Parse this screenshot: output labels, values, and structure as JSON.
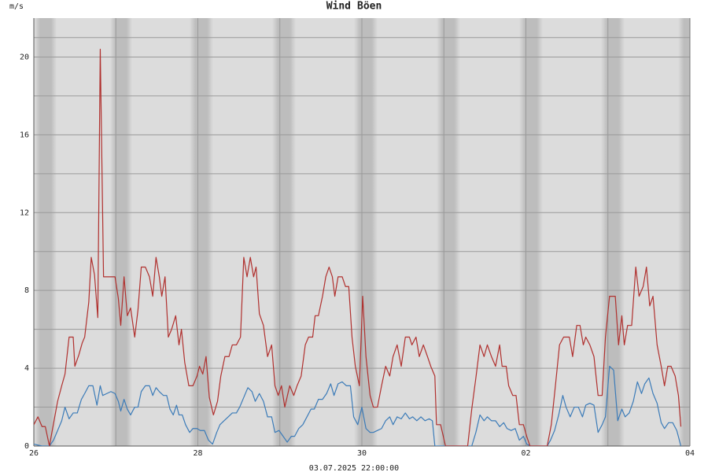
{
  "chart_data": {
    "type": "line",
    "y_label": "m/s",
    "footer": "03.07.2025 22:00:00",
    "xlim": [
      0,
      8
    ],
    "xticks": [
      {
        "value": 0,
        "label": "26"
      },
      {
        "value": 2,
        "label": "28"
      },
      {
        "value": 4,
        "label": "30"
      },
      {
        "value": 6,
        "label": "02"
      },
      {
        "value": 8,
        "label": "04"
      }
    ],
    "ylim": [
      0,
      22
    ],
    "yticks": [
      0,
      4,
      8,
      12,
      16,
      20
    ],
    "grid": true,
    "series": [
      {
        "name": "Wind",
        "color": "#3b7bb8",
        "x": [
          0,
          0.1,
          0.19,
          0.24,
          0.29,
          0.34,
          0.38,
          0.43,
          0.48,
          0.53,
          0.58,
          0.62,
          0.67,
          0.72,
          0.77,
          0.81,
          0.84,
          0.89,
          0.94,
          0.99,
          1.03,
          1.06,
          1.1,
          1.14,
          1.18,
          1.23,
          1.27,
          1.31,
          1.36,
          1.41,
          1.45,
          1.49,
          1.53,
          1.58,
          1.62,
          1.66,
          1.7,
          1.74,
          1.77,
          1.81,
          1.85,
          1.9,
          1.94,
          1.99,
          2.03,
          2.08,
          2.13,
          2.18,
          2.23,
          2.27,
          2.32,
          2.37,
          2.42,
          2.47,
          2.51,
          2.56,
          2.61,
          2.66,
          2.7,
          2.75,
          2.8,
          2.85,
          2.9,
          2.94,
          2.99,
          3.04,
          3.09,
          3.14,
          3.18,
          3.23,
          3.28,
          3.33,
          3.38,
          3.42,
          3.47,
          3.52,
          3.57,
          3.62,
          3.66,
          3.71,
          3.76,
          3.81,
          3.86,
          3.9,
          3.95,
          4.0,
          4.05,
          4.1,
          4.14,
          4.19,
          4.24,
          4.29,
          4.34,
          4.38,
          4.43,
          4.48,
          4.53,
          4.58,
          4.62,
          4.67,
          4.72,
          4.77,
          4.82,
          4.86,
          4.89,
          5.34,
          5.39,
          5.44,
          5.49,
          5.53,
          5.58,
          5.63,
          5.68,
          5.73,
          5.77,
          5.82,
          5.87,
          5.92,
          5.97,
          6.01,
          6.06,
          6.26,
          6.3,
          6.35,
          6.4,
          6.45,
          6.49,
          6.54,
          6.59,
          6.64,
          6.69,
          6.73,
          6.78,
          6.83,
          6.88,
          6.93,
          6.97,
          7.02,
          7.07,
          7.12,
          7.17,
          7.21,
          7.26,
          7.31,
          7.36,
          7.41,
          7.45,
          7.5,
          7.55,
          7.6,
          7.65,
          7.69,
          7.74,
          7.79,
          7.84,
          7.89
        ],
        "values": [
          0.1,
          0,
          0,
          0.3,
          0.8,
          1.3,
          2.0,
          1.4,
          1.7,
          1.7,
          2.4,
          2.7,
          3.1,
          3.1,
          2.1,
          3.1,
          2.6,
          2.7,
          2.8,
          2.7,
          2.3,
          1.8,
          2.4,
          1.9,
          1.6,
          2.0,
          2.0,
          2.8,
          3.1,
          3.1,
          2.6,
          3.0,
          2.8,
          2.6,
          2.6,
          1.9,
          1.6,
          2.1,
          1.6,
          1.6,
          1.1,
          0.7,
          0.9,
          0.9,
          0.8,
          0.8,
          0.3,
          0.1,
          0.7,
          1.1,
          1.3,
          1.5,
          1.7,
          1.7,
          2.0,
          2.5,
          3.0,
          2.8,
          2.3,
          2.7,
          2.3,
          1.5,
          1.5,
          0.7,
          0.8,
          0.5,
          0.2,
          0.5,
          0.5,
          0.9,
          1.1,
          1.5,
          1.9,
          1.9,
          2.4,
          2.4,
          2.7,
          3.2,
          2.6,
          3.2,
          3.3,
          3.1,
          3.1,
          1.5,
          1.1,
          2.0,
          0.9,
          0.7,
          0.7,
          0.8,
          0.9,
          1.3,
          1.5,
          1.1,
          1.5,
          1.4,
          1.7,
          1.4,
          1.5,
          1.3,
          1.5,
          1.3,
          1.4,
          1.3,
          0,
          0,
          0.7,
          1.6,
          1.3,
          1.5,
          1.3,
          1.3,
          1.0,
          1.2,
          0.9,
          0.8,
          0.9,
          0.3,
          0.5,
          0.1,
          0,
          0,
          0.3,
          0.8,
          1.6,
          2.6,
          2.0,
          1.5,
          2.0,
          2.0,
          1.5,
          2.1,
          2.2,
          2.1,
          0.7,
          1.1,
          1.5,
          4.1,
          3.9,
          1.3,
          1.9,
          1.5,
          1.7,
          2.3,
          3.3,
          2.7,
          3.2,
          3.5,
          2.7,
          2.2,
          1.2,
          0.9,
          1.2,
          1.2,
          0.8,
          0
        ]
      },
      {
        "name": "Böen",
        "color": "#b0302e",
        "x": [
          0,
          0.05,
          0.1,
          0.14,
          0.19,
          0.29,
          0.34,
          0.38,
          0.43,
          0.48,
          0.5,
          0.55,
          0.59,
          0.62,
          0.67,
          0.7,
          0.74,
          0.78,
          0.81,
          0.85,
          0.93,
          0.99,
          1.03,
          1.06,
          1.1,
          1.14,
          1.18,
          1.23,
          1.27,
          1.31,
          1.36,
          1.41,
          1.45,
          1.49,
          1.53,
          1.56,
          1.6,
          1.64,
          1.68,
          1.73,
          1.77,
          1.8,
          1.84,
          1.89,
          1.94,
          1.99,
          2.02,
          2.06,
          2.1,
          2.14,
          2.19,
          2.24,
          2.28,
          2.33,
          2.38,
          2.42,
          2.47,
          2.52,
          2.56,
          2.6,
          2.64,
          2.68,
          2.71,
          2.75,
          2.8,
          2.85,
          2.9,
          2.94,
          2.98,
          3.02,
          3.06,
          3.12,
          3.17,
          3.21,
          3.26,
          3.31,
          3.35,
          3.4,
          3.43,
          3.47,
          3.52,
          3.56,
          3.6,
          3.64,
          3.67,
          3.71,
          3.76,
          3.8,
          3.84,
          3.88,
          3.92,
          3.97,
          4.01,
          4.05,
          4.1,
          4.14,
          4.19,
          4.24,
          4.29,
          4.34,
          4.38,
          4.43,
          4.48,
          4.53,
          4.58,
          4.61,
          4.66,
          4.7,
          4.75,
          4.8,
          4.84,
          4.89,
          4.91,
          4.96,
          5.02,
          5.29,
          5.34,
          5.39,
          5.44,
          5.49,
          5.53,
          5.58,
          5.63,
          5.68,
          5.71,
          5.76,
          5.79,
          5.84,
          5.88,
          5.92,
          5.97,
          6.01,
          6.05,
          6.26,
          6.31,
          6.36,
          6.41,
          6.46,
          6.5,
          6.53,
          6.57,
          6.62,
          6.66,
          6.7,
          6.73,
          6.78,
          6.83,
          6.88,
          6.93,
          6.97,
          7.02,
          7.09,
          7.13,
          7.17,
          7.2,
          7.24,
          7.29,
          7.34,
          7.38,
          7.43,
          7.47,
          7.51,
          7.55,
          7.6,
          7.65,
          7.69,
          7.73,
          7.77,
          7.82,
          7.86,
          7.89
        ],
        "values": [
          1.1,
          1.5,
          1.0,
          1.0,
          0,
          2.3,
          3.1,
          3.7,
          5.6,
          5.6,
          4.1,
          4.7,
          5.3,
          5.6,
          7.4,
          9.7,
          8.8,
          6.6,
          20.4,
          8.7,
          8.7,
          8.7,
          7.6,
          6.2,
          8.7,
          6.7,
          7.1,
          5.6,
          7.0,
          9.2,
          9.2,
          8.7,
          7.7,
          9.7,
          8.7,
          7.7,
          8.7,
          5.6,
          6.0,
          6.7,
          5.2,
          6.0,
          4.3,
          3.1,
          3.1,
          3.6,
          4.1,
          3.7,
          4.6,
          2.5,
          1.6,
          2.3,
          3.6,
          4.6,
          4.6,
          5.2,
          5.2,
          5.6,
          9.7,
          8.7,
          9.7,
          8.7,
          9.2,
          6.8,
          6.2,
          4.6,
          5.2,
          3.1,
          2.6,
          3.1,
          2.0,
          3.1,
          2.6,
          3.1,
          3.6,
          5.2,
          5.6,
          5.6,
          6.7,
          6.7,
          7.7,
          8.7,
          9.2,
          8.7,
          7.7,
          8.7,
          8.7,
          8.2,
          8.2,
          5.6,
          4.1,
          3.1,
          7.7,
          4.6,
          2.6,
          2.0,
          2.0,
          3.1,
          4.1,
          3.6,
          4.6,
          5.2,
          4.1,
          5.6,
          5.6,
          5.2,
          5.6,
          4.6,
          5.2,
          4.6,
          4.1,
          3.6,
          1.1,
          1.1,
          0,
          0,
          1.9,
          3.5,
          5.2,
          4.6,
          5.2,
          4.6,
          4.1,
          5.2,
          4.1,
          4.1,
          3.1,
          2.6,
          2.6,
          1.1,
          1.1,
          0.5,
          0,
          0,
          1.1,
          3.1,
          5.2,
          5.6,
          5.6,
          5.6,
          4.6,
          6.2,
          6.2,
          5.2,
          5.6,
          5.2,
          4.6,
          2.6,
          2.6,
          5.6,
          7.7,
          7.7,
          5.2,
          6.7,
          5.2,
          6.2,
          6.2,
          9.2,
          7.7,
          8.2,
          9.2,
          7.2,
          7.7,
          5.2,
          4.1,
          3.1,
          4.1,
          4.1,
          3.6,
          2.6,
          1.0
        ]
      }
    ]
  }
}
